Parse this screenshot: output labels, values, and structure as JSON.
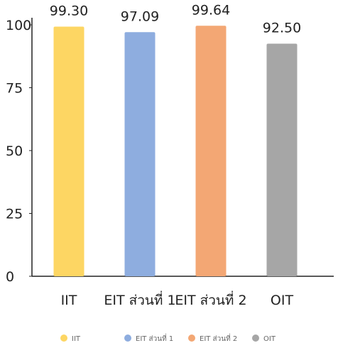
{
  "chart_data": {
    "type": "bar",
    "title": "",
    "xlabel": "",
    "ylabel": "",
    "ylim": [
      0,
      100
    ],
    "yticks": [
      0,
      25,
      50,
      75,
      100
    ],
    "grid": false,
    "legend_position": "bottom",
    "categories": [
      "IIT",
      "EIT ส่วนที่ 1",
      "EIT ส่วนที่ 2",
      "OIT"
    ],
    "values": [
      99.3,
      97.09,
      99.64,
      92.5
    ],
    "value_labels": [
      "99.30",
      "97.09",
      "99.64",
      "92.50"
    ],
    "colors": [
      "#FDD663",
      "#8EADDF",
      "#F3A774",
      "#A6A6A6"
    ]
  },
  "legend": {
    "items": [
      {
        "label": "IIT",
        "color": "#FDD663"
      },
      {
        "label": "EIT ส่วนที่ 1",
        "color": "#8EADDF"
      },
      {
        "label": "EIT ส่วนที่ 2",
        "color": "#F3A774"
      },
      {
        "label": "OIT",
        "color": "#A6A6A6"
      }
    ]
  }
}
